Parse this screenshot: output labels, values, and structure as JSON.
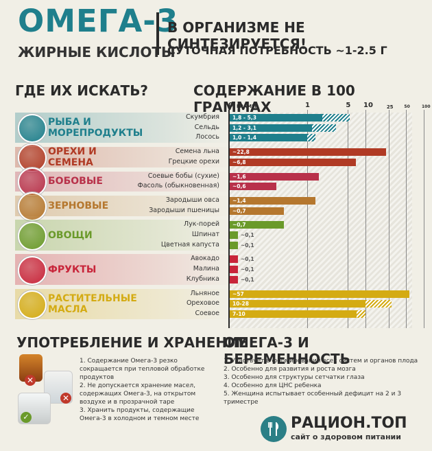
{
  "header": {
    "title": "ОМЕГА-3",
    "subtitle": "ЖИРНЫЕ КИСЛОТЫ",
    "not_synthesized": "В ОРГАНИЗМЕ НЕ СИНТЕЗИРУЕТСЯ!",
    "daily_need": "СУТОЧНАЯ ПОТРЕБНОСТЬ ~1-2.5 Г"
  },
  "sections": {
    "where": "ГДЕ ИХ ИСКАТЬ?",
    "content": "СОДЕРЖАНИЕ В 100 ГРАММАХ",
    "usage": "УПОТРЕБЛЕНИЕ И ХРАНЕНИЕ",
    "pregnancy": "ОМЕГА-3 И БЕРЕМЕННОСТЬ"
  },
  "categories": [
    {
      "label": "РЫБА И МОРЕПРОДУКТЫ",
      "color": "#1f7f8c",
      "icon": "fish-icon"
    },
    {
      "label": "ОРЕХИ И СЕМЕНА",
      "color": "#b03a24",
      "icon": "nuts-icon"
    },
    {
      "label": "БОБОВЫЕ",
      "color": "#b8314a",
      "icon": "beans-icon"
    },
    {
      "label": "ЗЕРНОВЫЕ",
      "color": "#b5772e",
      "icon": "grain-icon"
    },
    {
      "label": "ОВОЩИ",
      "color": "#6a9a2a",
      "icon": "leek-icon"
    },
    {
      "label": "ФРУКТЫ",
      "color": "#c8253a",
      "icon": "raspberry-icon"
    },
    {
      "label": "РАСТИТЕЛЬНЫЕ МАСЛА",
      "color": "#d4ab13",
      "icon": "oil-bottle-icon"
    }
  ],
  "chart_data": {
    "type": "bar",
    "title": "СОДЕРЖАНИЕ В 100 ГРАММАХ",
    "x_scale": "log",
    "x_unit_label": "ГРАММ",
    "ticks": [
      "0",
      "1",
      "5",
      "10",
      "25",
      "50",
      "100"
    ],
    "items": [
      {
        "food": "Скумбрия",
        "label": "1,8 - 5,3",
        "min": 1.8,
        "max": 5.3,
        "cat": 0
      },
      {
        "food": "Сельдь",
        "label": "1,2 - 3,1",
        "min": 1.2,
        "max": 3.1,
        "cat": 0
      },
      {
        "food": "Лосось",
        "label": "1,0 - 1,4",
        "min": 1.0,
        "max": 1.4,
        "cat": 0
      },
      {
        "food": "Семена льна",
        "label": "~22,8",
        "min": 22.8,
        "max": 22.8,
        "cat": 1
      },
      {
        "food": "Грецкие орехи",
        "label": "~6,8",
        "min": 6.8,
        "max": 6.8,
        "cat": 1
      },
      {
        "food": "Соевые бобы (сухие)",
        "label": "~1,6",
        "min": 1.6,
        "max": 1.6,
        "cat": 2
      },
      {
        "food": "Фасоль (обыкновенная)",
        "label": "~0,6",
        "min": 0.6,
        "max": 0.6,
        "cat": 2
      },
      {
        "food": "Зародыши овса",
        "label": "~1,4",
        "min": 1.4,
        "max": 1.4,
        "cat": 3
      },
      {
        "food": "Зародыши пшеницы",
        "label": "~0,7",
        "min": 0.7,
        "max": 0.7,
        "cat": 3
      },
      {
        "food": "Лук-порей",
        "label": "~0,7",
        "min": 0.7,
        "max": 0.7,
        "cat": 4
      },
      {
        "food": "Шпинат",
        "label": "~0,1",
        "min": 0.1,
        "max": 0.1,
        "cat": 4
      },
      {
        "food": "Цветная капуста",
        "label": "~0,1",
        "min": 0.1,
        "max": 0.1,
        "cat": 4
      },
      {
        "food": "Авокадо",
        "label": "~0,1",
        "min": 0.1,
        "max": 0.1,
        "cat": 5
      },
      {
        "food": "Малина",
        "label": "~0,1",
        "min": 0.1,
        "max": 0.1,
        "cat": 5
      },
      {
        "food": "Клубника",
        "label": "~0,1",
        "min": 0.1,
        "max": 0.1,
        "cat": 5
      },
      {
        "food": "Льняное",
        "label": "~57",
        "min": 57,
        "max": 57,
        "cat": 6
      },
      {
        "food": "Ореховое",
        "label": "10-28",
        "min": 10,
        "max": 28,
        "cat": 6
      },
      {
        "food": "Соевое",
        "label": "7-10",
        "min": 7,
        "max": 10,
        "cat": 6
      }
    ]
  },
  "usage": {
    "items": [
      "1. Содержание Омега-3 резко сокращается при тепловой обработке продуктов",
      "2. Не допускается хранение масел, содержащих Омега-3, на открытом воздухе и в прозрачной таре",
      "3. Хранить продукты, содержащие Омега-3 в холодном и темном месте"
    ]
  },
  "pregnancy": {
    "items": [
      "1. Участвует в формировании всех систем и органов плода",
      "2. Особенно для развития и роста мозга",
      "3. Особенно для структуры сетчатки глаза",
      "4. Особенно для ЦНС ребенка",
      "5. Женщина испытывает особенный дефицит на 2 и 3 триместре"
    ]
  },
  "brand": {
    "name": "РАЦИОН.ТОП",
    "tagline": "сайт о здоровом питании"
  }
}
